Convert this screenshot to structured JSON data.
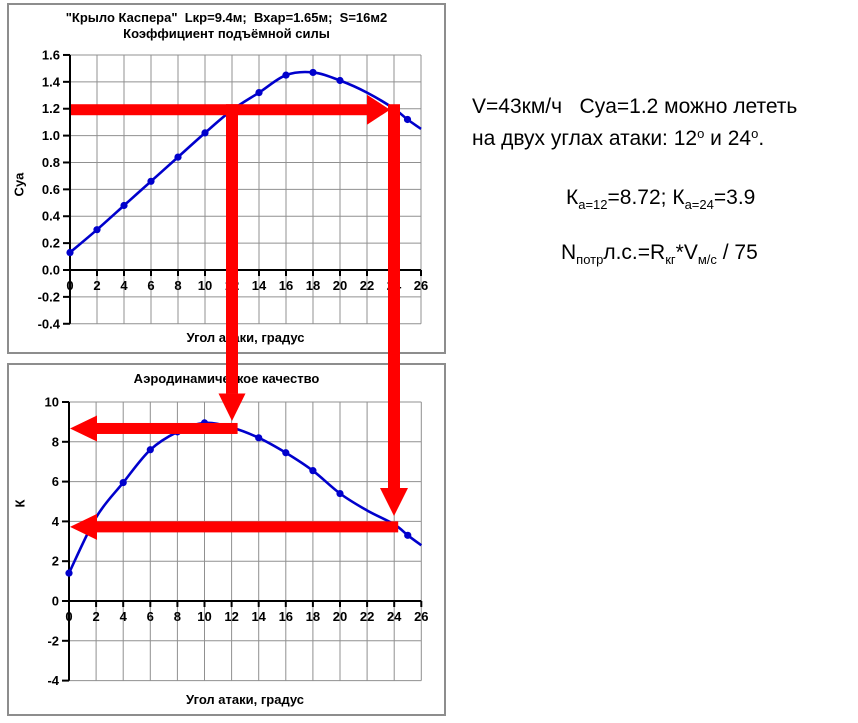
{
  "chart_data": [
    {
      "type": "line",
      "title_line1": "\"Крыло Каспера\"  Lкр=9.4м;  Вхар=1.65м;  S=16м2",
      "title_line2": "Коэффициент подъёмной силы",
      "xlabel": "Угол атаки, градус",
      "ylabel": "Cya",
      "xlim": [
        0,
        26
      ],
      "ylim": [
        -0.4,
        1.6
      ],
      "xticks": [
        0,
        2,
        4,
        6,
        8,
        10,
        12,
        14,
        16,
        18,
        20,
        22,
        24,
        26
      ],
      "yticks": [
        "1.6",
        "1.4",
        "1.2",
        "1.0",
        "0.8",
        "0.6",
        "0.4",
        "0.2",
        "0.0",
        "-0.2",
        "-0.4"
      ],
      "grid": true,
      "legend": "none",
      "line_points": [
        [
          0,
          0.13
        ],
        [
          2,
          0.3
        ],
        [
          4,
          0.48
        ],
        [
          6,
          0.66
        ],
        [
          8,
          0.84
        ],
        [
          10,
          1.02
        ],
        [
          12,
          1.19
        ],
        [
          14,
          1.32
        ],
        [
          16,
          1.45
        ],
        [
          18,
          1.47
        ],
        [
          20,
          1.41
        ],
        [
          22,
          1.32
        ],
        [
          24,
          1.2
        ],
        [
          25,
          1.12
        ],
        [
          26,
          1.05
        ]
      ],
      "marker_angles": [
        0,
        2,
        4,
        6,
        8,
        10,
        12,
        14,
        16,
        18,
        20,
        25
      ],
      "line_color": "#0000cc",
      "grid_color": "#909090"
    },
    {
      "type": "line",
      "title_line1": "Аэродинамическое качество",
      "title_line2": "",
      "xlabel": "Угол атаки, градус",
      "ylabel": "К",
      "xlim": [
        0,
        26
      ],
      "ylim": [
        -4,
        10
      ],
      "xticks": [
        0,
        2,
        4,
        6,
        8,
        10,
        12,
        14,
        16,
        18,
        20,
        22,
        24,
        26
      ],
      "yticks": [
        "10",
        "8",
        "6",
        "4",
        "2",
        "0",
        "-2",
        "-4"
      ],
      "grid": true,
      "legend": "none",
      "line_points": [
        [
          0,
          1.4
        ],
        [
          2,
          4.2
        ],
        [
          4,
          5.95
        ],
        [
          6,
          7.6
        ],
        [
          8,
          8.5
        ],
        [
          10,
          8.95
        ],
        [
          12,
          8.72
        ],
        [
          14,
          8.2
        ],
        [
          16,
          7.45
        ],
        [
          18,
          6.55
        ],
        [
          20,
          5.4
        ],
        [
          22,
          4.55
        ],
        [
          24,
          3.85
        ],
        [
          25,
          3.3
        ],
        [
          26,
          2.8
        ]
      ],
      "marker_angles": [
        0,
        4,
        6,
        8,
        10,
        12,
        14,
        16,
        18,
        20,
        25
      ],
      "line_color": "#0000cc",
      "grid_color": "#909090"
    }
  ],
  "annotations": {
    "cya_level": 1.2,
    "alpha_low": 12,
    "alpha_high": 24,
    "k_at_alpha_low": 8.72,
    "k_at_alpha_high": 3.9,
    "arrow_color": "#ff0000"
  },
  "note": {
    "line1": "V=43км/ч   Cya=1.2 можно лететь",
    "line2": {
      "t1": "на двух углах атаки: 12",
      "s1": "о",
      "t2": " и 24",
      "s2": "о",
      "t3": "."
    },
    "formula_k": {
      "t1": "К",
      "s1": "а=12",
      "t2": "=8.72; К",
      "s2": "а=24",
      "t3": "=3.9"
    },
    "formula_n": {
      "t1": "N",
      "s1": "потр",
      "t2": "л.с.=R",
      "s2": "кг",
      "t3": "*V",
      "s3": "м/с",
      "t4": " / 75"
    }
  }
}
